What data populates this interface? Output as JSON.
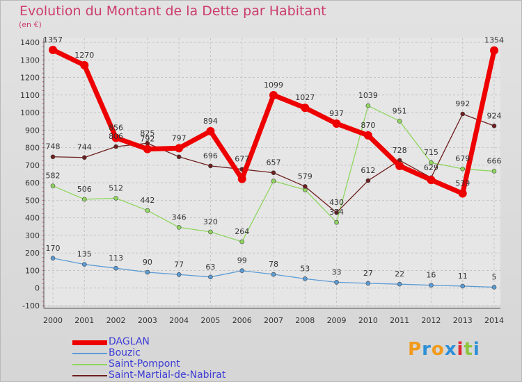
{
  "title": "Evolution du Montant de la Dette par Habitant",
  "unit": "(en €)",
  "logo": {
    "text": "Proxiti",
    "letters": [
      "P",
      "r",
      "o",
      "x",
      "i",
      "t",
      "i"
    ],
    "colors": [
      "#f19a1b",
      "#2e8fd6",
      "#f19a1b",
      "#2e8fd6",
      "#e3262f",
      "#8cc63f",
      "#2e8fd6"
    ]
  },
  "chart_data": {
    "type": "line",
    "title": "Evolution du Montant de la Dette par Habitant",
    "ylabel": "(en €)",
    "x": [
      "2000",
      "2001",
      "2002",
      "2003",
      "2004",
      "2005",
      "2006",
      "2007",
      "2008",
      "2009",
      "2010",
      "2011",
      "2012",
      "2013",
      "2014"
    ],
    "ylim": [
      -100,
      1400
    ],
    "yticks": [
      -100,
      0,
      100,
      200,
      300,
      400,
      500,
      600,
      700,
      800,
      900,
      1000,
      1100,
      1200,
      1300,
      1400
    ],
    "grid": true,
    "legend_position": "bottom-left",
    "series": [
      {
        "name": "DAGLAN",
        "color": "#ee0000",
        "values": [
          1357,
          1270,
          856,
          792,
          797,
          894,
          622,
          1099,
          1027,
          937,
          870,
          696,
          616,
          539,
          1354
        ],
        "labels": [
          "1357",
          "1270",
          "856",
          "792",
          "797",
          "894",
          "",
          "1099",
          "1027",
          "937",
          "870",
          "",
          "",
          "539",
          "1354"
        ]
      },
      {
        "name": "Bouzic",
        "color": "#5b9bd5",
        "values": [
          170,
          135,
          113,
          90,
          77,
          63,
          99,
          78,
          53,
          33,
          27,
          22,
          16,
          11,
          5
        ],
        "labels": [
          "170",
          "135",
          "113",
          "90",
          "77",
          "63",
          "99",
          "78",
          "53",
          "33",
          "27",
          "22",
          "16",
          "11",
          "5"
        ]
      },
      {
        "name": "Saint-Pompont",
        "color": "#8fd65f",
        "values": [
          582,
          506,
          512,
          442,
          346,
          320,
          264,
          610,
          560,
          374,
          1039,
          951,
          715,
          679,
          666
        ],
        "labels": [
          "582",
          "506",
          "512",
          "442",
          "346",
          "320",
          "264",
          "",
          "",
          "374",
          "1039",
          "951",
          "715",
          "679",
          "666"
        ]
      },
      {
        "name": "Saint-Martial-de-Nabirat",
        "color": "#6e1e1e",
        "values": [
          748,
          744,
          806,
          825,
          748,
          696,
          677,
          657,
          579,
          430,
          612,
          728,
          629,
          992,
          924
        ],
        "labels": [
          "748",
          "744",
          "806",
          "825",
          "",
          "696",
          "677",
          "657",
          "579",
          "430",
          "612",
          "728",
          "629",
          "992",
          "924"
        ]
      }
    ]
  }
}
